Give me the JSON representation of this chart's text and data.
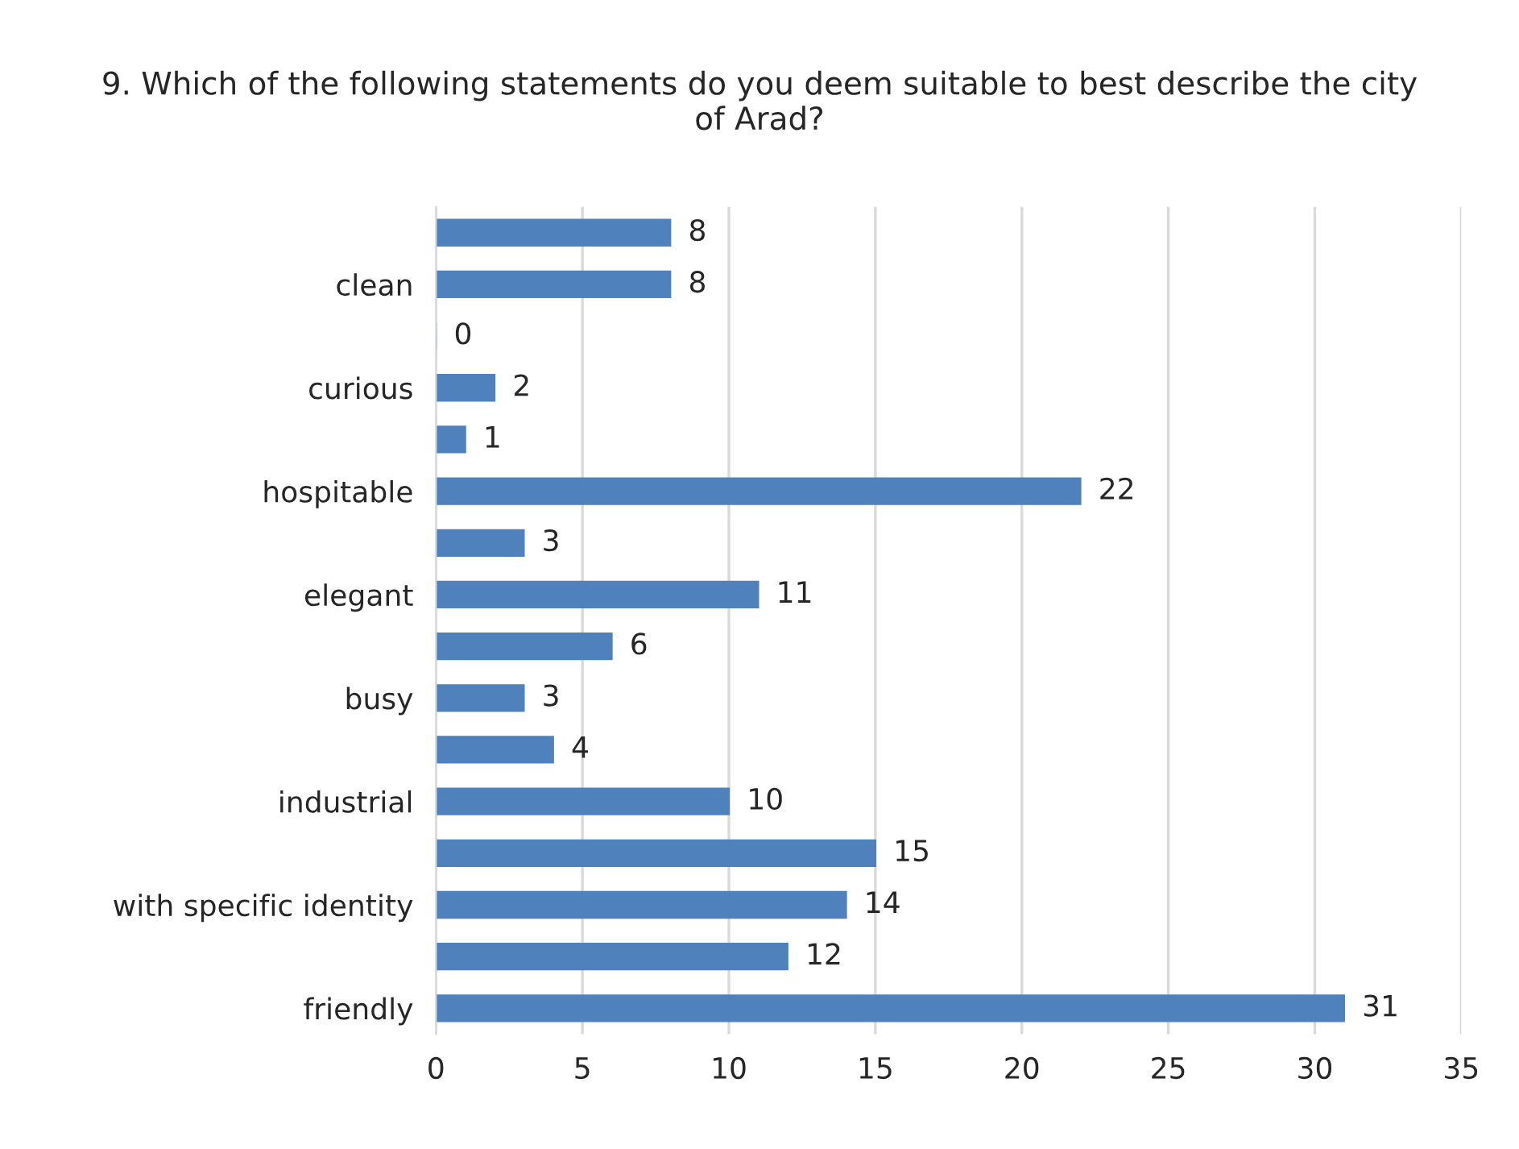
{
  "chart_data": {
    "type": "bar",
    "orientation": "horizontal",
    "title": "9. Which of the following statements do you deem suitable to best describe the city of Arad?",
    "categories": [
      null,
      "clean",
      null,
      "curious",
      null,
      "hospitable",
      null,
      "elegant",
      null,
      "busy",
      null,
      "industrial",
      null,
      "with specific identity",
      null,
      "friendly"
    ],
    "values": [
      8,
      8,
      0,
      2,
      1,
      22,
      3,
      11,
      6,
      3,
      4,
      10,
      15,
      14,
      12,
      31
    ],
    "color": "#4f81bd",
    "xlim": [
      0,
      35
    ],
    "xticks": [
      0,
      5,
      10,
      15,
      20,
      25,
      30,
      35
    ],
    "grid": "x",
    "data_labels": true,
    "legend": false
  }
}
